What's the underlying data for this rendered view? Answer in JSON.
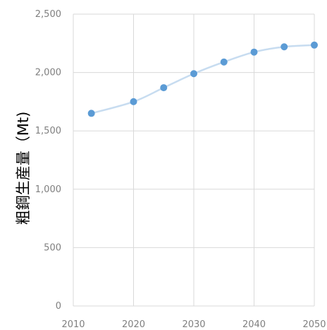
{
  "chart_data": {
    "type": "line",
    "title": "",
    "xlabel": "",
    "ylabel": "粗鋼生産量（Mt)",
    "xlim": [
      2010,
      2050
    ],
    "ylim": [
      0,
      2500
    ],
    "x_ticks": [
      2010,
      2020,
      2030,
      2040,
      2050
    ],
    "x_tick_labels": [
      "2010",
      "2020",
      "2030",
      "2040",
      "2050"
    ],
    "y_ticks": [
      0,
      500,
      1000,
      1500,
      2000,
      2500
    ],
    "y_tick_labels": [
      "0",
      "500",
      "1,000",
      "1,500",
      "2,000",
      "2,500"
    ],
    "grid": true,
    "legend": "none",
    "smooth": true,
    "colors": {
      "marker": "#5b9bd5",
      "line": "#c7dcf0",
      "grid": "#d9d9d9",
      "tick_text": "#7f7f7f"
    },
    "series": [
      {
        "x": [
          2013,
          2020,
          2025,
          2030,
          2035,
          2040,
          2045,
          2050
        ],
        "values": [
          1650,
          1750,
          1870,
          1990,
          2090,
          2175,
          2220,
          2235
        ]
      }
    ]
  }
}
